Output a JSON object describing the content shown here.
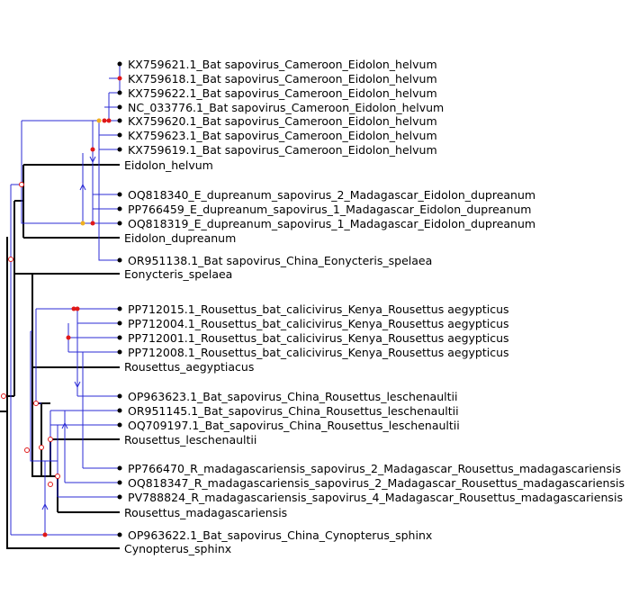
{
  "tips": {
    "v1": "KX759621.1_Bat sapovirus_Cameroon_Eidolon_helvum",
    "v2": "KX759618.1_Bat sapovirus_Cameroon_Eidolon_helvum",
    "v3": "KX759622.1_Bat sapovirus_Cameroon_Eidolon_helvum",
    "v4": "NC_033776.1_Bat sapovirus_Cameroon_Eidolon_helvum",
    "v5": "KX759620.1_Bat sapovirus_Cameroon_Eidolon_helvum",
    "v6": "KX759623.1_Bat sapovirus_Cameroon_Eidolon_helvum",
    "v7": "KX759619.1_Bat sapovirus_Cameroon_Eidolon_helvum",
    "h1": "Eidolon_helvum",
    "v8": "OQ818340_E_dupreanum_sapovirus_2_Madagascar_Eidolon_dupreanum",
    "v9": "PP766459_E_dupreanum_sapovirus_1_Madagascar_Eidolon_dupreanum",
    "v10": "OQ818319_E_dupreanum_sapovirus_1_Madagascar_Eidolon_dupreanum",
    "h2": "Eidolon_dupreanum",
    "v11": "OR951138.1_Bat sapovirus_China_Eonycteris_spelaea",
    "h3": "Eonycteris_spelaea",
    "v12": "PP712015.1_Rousettus_bat_calicivirus_Kenya_Rousettus aegypticus",
    "v13": "PP712004.1_Rousettus_bat_calicivirus_Kenya_Rousettus aegypticus",
    "v14": "PP712001.1_Rousettus_bat_calicivirus_Kenya_Rousettus aegypticus",
    "v15": "PP712008.1_Rousettus_bat_calicivirus_Kenya_Rousettus aegypticus",
    "h4": "Rousettus_aegyptiacus",
    "v16": "OP963623.1_Bat_sapovirus_China_Rousettus_leschenaultii",
    "v17": "OR951145.1_Bat_sapovirus_China_Rousettus_leschenaultii",
    "v18": "OQ709197.1_Bat_sapovirus_China_Rousettus_leschenaultii",
    "h5": "Rousettus_leschenaultii",
    "v19": "PP766470_R_madagascariensis_sapovirus_2_Madagascar_Rousettus_madagascariensis",
    "v20": "OQ818347_R_madagascariensis_sapovirus_2_Madagascar_Rousettus_madagascariensis",
    "v21": "PV788824_R_madagascariensis_sapovirus_4_Madagascar_Rousettus_madagascariensis",
    "h6": "Rousettus_madagascariensis",
    "v22": "OP963622.1_Bat_sapovirus_China_Cynopterus_sphinx",
    "h7": "Cynopterus_sphinx"
  },
  "colors": {
    "host_tree": "#000000",
    "virus_tree": "#2b2bd6",
    "cospeciation_event": "#e01818",
    "duplication_event": "#f0b020",
    "loss_event": "#2b2bd6"
  }
}
